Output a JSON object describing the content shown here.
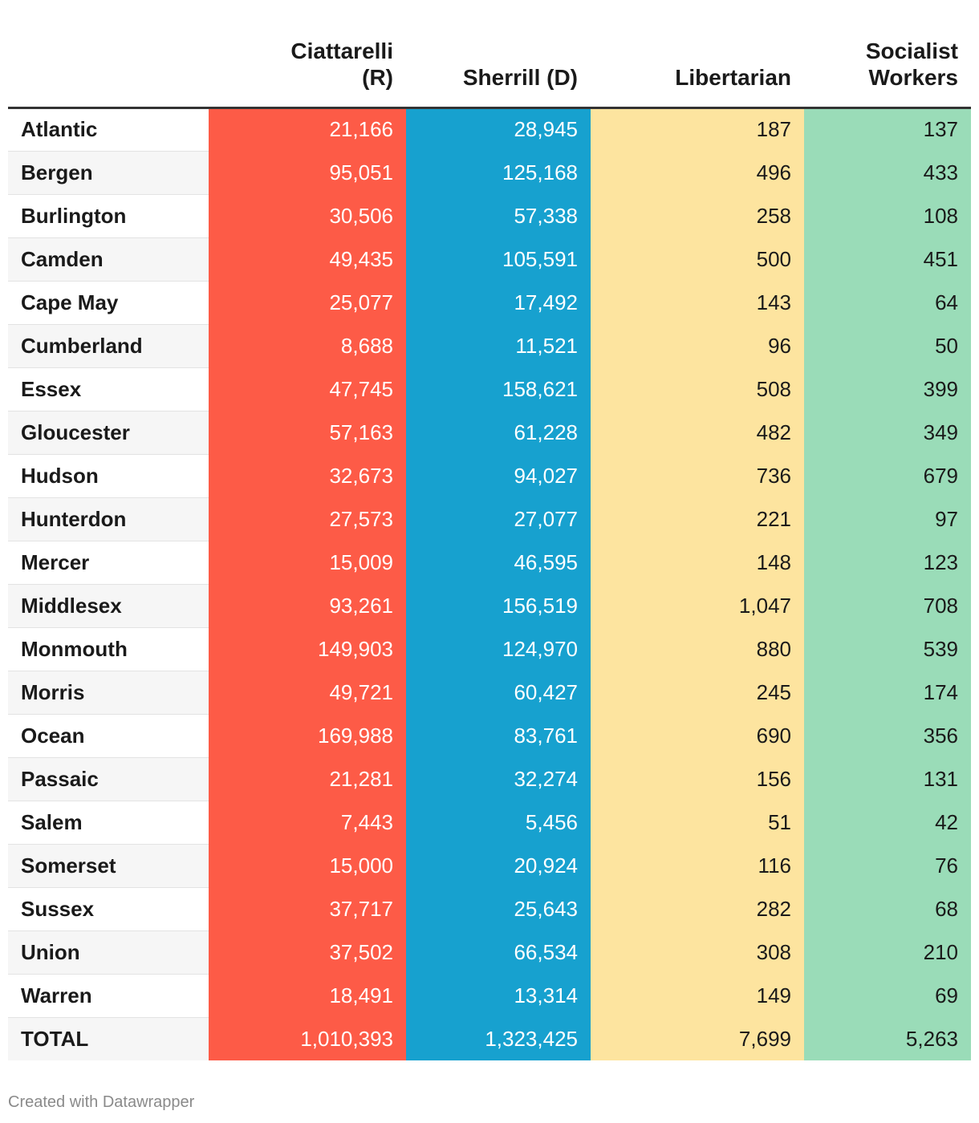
{
  "chart_data": {
    "type": "table",
    "columns": [
      "",
      "Ciattarelli\n(R)",
      "Sherrill (D)",
      "Libertarian",
      "Socialist\nWorkers"
    ],
    "colors": {
      "ciattarelli": "#fd5b47",
      "sherrill": "#17a1cf",
      "libertarian": "#fde49f",
      "socialist_workers": "#9adcb8"
    },
    "rows": [
      [
        "Atlantic",
        "21,166",
        "28,945",
        "187",
        "137"
      ],
      [
        "Bergen",
        "95,051",
        "125,168",
        "496",
        "433"
      ],
      [
        "Burlington",
        "30,506",
        "57,338",
        "258",
        "108"
      ],
      [
        "Camden",
        "49,435",
        "105,591",
        "500",
        "451"
      ],
      [
        "Cape May",
        "25,077",
        "17,492",
        "143",
        "64"
      ],
      [
        "Cumberland",
        "8,688",
        "11,521",
        "96",
        "50"
      ],
      [
        "Essex",
        "47,745",
        "158,621",
        "508",
        "399"
      ],
      [
        "Gloucester",
        "57,163",
        "61,228",
        "482",
        "349"
      ],
      [
        "Hudson",
        "32,673",
        "94,027",
        "736",
        "679"
      ],
      [
        "Hunterdon",
        "27,573",
        "27,077",
        "221",
        "97"
      ],
      [
        "Mercer",
        "15,009",
        "46,595",
        "148",
        "123"
      ],
      [
        "Middlesex",
        "93,261",
        "156,519",
        "1,047",
        "708"
      ],
      [
        "Monmouth",
        "149,903",
        "124,970",
        "880",
        "539"
      ],
      [
        "Morris",
        "49,721",
        "60,427",
        "245",
        "174"
      ],
      [
        "Ocean",
        "169,988",
        "83,761",
        "690",
        "356"
      ],
      [
        "Passaic",
        "21,281",
        "32,274",
        "156",
        "131"
      ],
      [
        "Salem",
        "7,443",
        "5,456",
        "51",
        "42"
      ],
      [
        "Somerset",
        "15,000",
        "20,924",
        "116",
        "76"
      ],
      [
        "Sussex",
        "37,717",
        "25,643",
        "282",
        "68"
      ],
      [
        "Union",
        "37,502",
        "66,534",
        "308",
        "210"
      ],
      [
        "Warren",
        "18,491",
        "13,314",
        "149",
        "69"
      ],
      [
        "TOTAL",
        "1,010,393",
        "1,323,425",
        "7,699",
        "5,263"
      ]
    ]
  },
  "footer": {
    "credit": "Created with Datawrapper"
  }
}
